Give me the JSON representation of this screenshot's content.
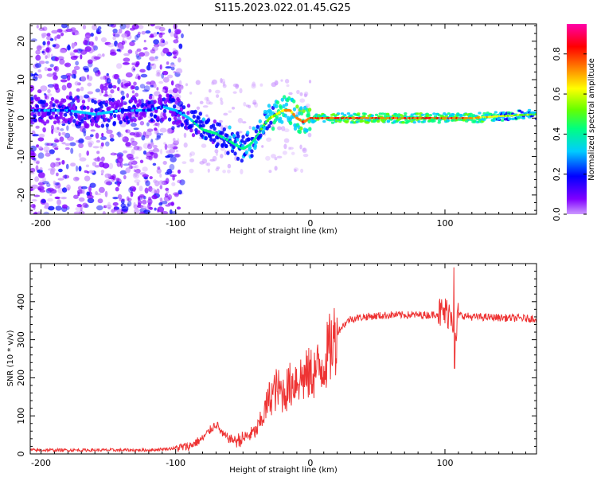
{
  "title": "S115.2023.022.01.45.G25",
  "chart_data": [
    {
      "type": "heatmap",
      "xlabel": "Height of straight line (km)",
      "ylabel": "Frequency (Hz)",
      "xlim": [
        -208,
        168
      ],
      "ylim": [
        -25,
        24.5
      ],
      "xticks": [
        -200,
        -100,
        0,
        100
      ],
      "yticks": [
        -20,
        -10,
        0,
        10,
        20
      ],
      "colorbar": {
        "label": "Normalized spectral amplitude",
        "range": [
          0,
          0.95
        ],
        "ticks": [
          "0.0",
          "0.2",
          "0.4",
          "0.6",
          "0.8"
        ],
        "tick_values": [
          0.0,
          0.2,
          0.4,
          0.6,
          0.8
        ],
        "colors": [
          "#cc99ff",
          "#8000ff",
          "#0000ff",
          "#00ccff",
          "#00ff80",
          "#66ff00",
          "#ffff00",
          "#ff8000",
          "#ff0000",
          "#ff00aa"
        ]
      },
      "ridge": {
        "x": [
          -208,
          -180,
          -160,
          -140,
          -120,
          -110,
          -100,
          -90,
          -80,
          -70,
          -60,
          -55,
          -50,
          -45,
          -40,
          -35,
          -30,
          -25,
          -20,
          -15,
          -10,
          -5,
          0,
          5,
          10,
          20,
          40,
          60,
          80,
          100,
          120,
          140,
          168
        ],
        "freq": [
          2,
          2,
          1,
          2,
          2,
          3,
          2,
          0,
          -3,
          -4,
          -6,
          -7,
          -8,
          -7,
          -5,
          -2,
          0,
          1,
          2,
          2,
          0,
          -1,
          0,
          0,
          0,
          0,
          0,
          0,
          0,
          0,
          0,
          0.5,
          1
        ],
        "amplitude": [
          0.3,
          0.3,
          0.35,
          0.3,
          0.3,
          0.3,
          0.35,
          0.4,
          0.45,
          0.45,
          0.45,
          0.45,
          0.5,
          0.5,
          0.5,
          0.55,
          0.6,
          0.7,
          0.75,
          0.8,
          0.8,
          0.85,
          0.85,
          0.9,
          0.9,
          0.9,
          0.9,
          0.9,
          0.9,
          0.9,
          0.85,
          0.7,
          0.6
        ]
      }
    },
    {
      "type": "line",
      "xlabel": "Height of straight line (km)",
      "ylabel": "SNR (10 * v/v)",
      "xlim": [
        -208,
        168
      ],
      "ylim": [
        0,
        500
      ],
      "xticks": [
        -200,
        -100,
        0,
        100
      ],
      "yticks": [
        0,
        100,
        200,
        300,
        400
      ],
      "series": [
        {
          "name": "SNR",
          "color": "#ee3333",
          "x": [
            -208,
            -180,
            -150,
            -120,
            -100,
            -90,
            -85,
            -80,
            -75,
            -70,
            -65,
            -60,
            -55,
            -50,
            -45,
            -40,
            -35,
            -30,
            -25,
            -20,
            -15,
            -10,
            -5,
            0,
            5,
            10,
            15,
            20,
            25,
            30,
            40,
            60,
            80,
            90,
            95,
            100,
            105,
            108,
            110,
            120,
            140,
            168
          ],
          "values": [
            10,
            10,
            10,
            10,
            15,
            20,
            30,
            40,
            60,
            80,
            50,
            40,
            35,
            40,
            50,
            60,
            100,
            150,
            170,
            160,
            180,
            200,
            200,
            210,
            220,
            240,
            280,
            320,
            340,
            355,
            360,
            365,
            365,
            365,
            370,
            370,
            375,
            300,
            365,
            360,
            358,
            355
          ]
        }
      ]
    }
  ]
}
